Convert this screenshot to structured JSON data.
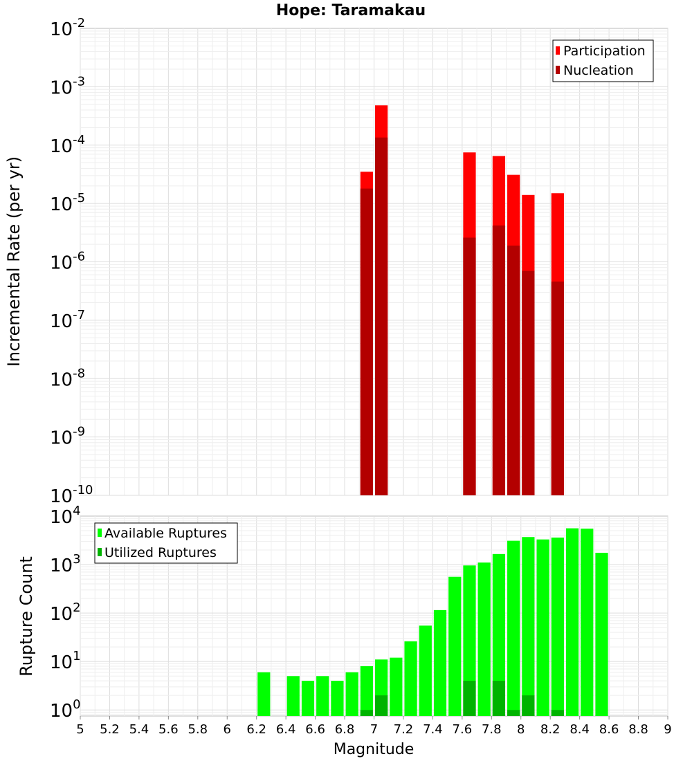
{
  "chart_data": [
    {
      "type": "bar",
      "title": "Hope: Taramakau",
      "ylabel": "Incremental Rate (per yr)",
      "xlabel": "",
      "yscale": "log",
      "ylim": [
        1e-10,
        0.01
      ],
      "xlim": [
        5,
        9
      ],
      "y_tick_exponents": [
        "-2",
        "-3",
        "-4",
        "-5",
        "-6",
        "-7",
        "-8",
        "-9",
        "-10"
      ],
      "y_tick_base": "10",
      "grid": true,
      "legend_position": "top-right",
      "series": [
        {
          "name": "Participation",
          "color": "#ff0000",
          "x": [
            6.95,
            7.05,
            7.65,
            7.85,
            7.95,
            8.05,
            8.25
          ],
          "values": [
            3.5e-05,
            0.00048,
            7.5e-05,
            6.5e-05,
            3.1e-05,
            1.4e-05,
            1.5e-05
          ]
        },
        {
          "name": "Nucleation",
          "color": "#b30000",
          "x": [
            6.95,
            7.05,
            7.65,
            7.85,
            7.95,
            8.05,
            8.25
          ],
          "values": [
            1.8e-05,
            0.000135,
            2.6e-06,
            4.2e-06,
            1.9e-06,
            7e-07,
            4.6e-07
          ]
        }
      ]
    },
    {
      "type": "bar",
      "title": "",
      "ylabel": "Rupture Count",
      "xlabel": "Magnitude",
      "yscale": "log",
      "ylim": [
        0.75,
        10000
      ],
      "xlim": [
        5,
        9
      ],
      "x_ticks": [
        "5",
        "5.2",
        "5.4",
        "5.6",
        "5.8",
        "6",
        "6.2",
        "6.4",
        "6.6",
        "6.8",
        "7",
        "7.2",
        "7.4",
        "7.6",
        "7.8",
        "8",
        "8.2",
        "8.4",
        "8.6",
        "8.8",
        "9"
      ],
      "y_tick_exponents": [
        "0",
        "1",
        "2",
        "3",
        "4"
      ],
      "y_tick_base": "10",
      "grid": true,
      "legend_position": "top-left",
      "series": [
        {
          "name": "Available Ruptures",
          "color": "#00ff00",
          "x": [
            6.25,
            6.45,
            6.55,
            6.65,
            6.75,
            6.85,
            6.95,
            7.05,
            7.15,
            7.25,
            7.35,
            7.45,
            7.55,
            7.65,
            7.75,
            7.85,
            7.95,
            8.05,
            8.15,
            8.25,
            8.35,
            8.45,
            8.55
          ],
          "values": [
            6,
            5,
            4,
            5,
            4,
            6,
            8,
            11,
            12,
            26,
            55,
            115,
            560,
            960,
            1100,
            1650,
            3100,
            3700,
            3300,
            3600,
            5600,
            5500,
            1750
          ]
        },
        {
          "name": "Utilized Ruptures",
          "color": "#00b300",
          "x": [
            6.95,
            7.05,
            7.65,
            7.85,
            7.95,
            8.05,
            8.25
          ],
          "values": [
            1,
            2,
            4,
            4,
            1,
            2,
            1
          ]
        }
      ]
    }
  ],
  "colors": {
    "participation": "#ff0000",
    "nucleation": "#b30000",
    "available": "#00ff00",
    "utilized": "#00b300"
  }
}
